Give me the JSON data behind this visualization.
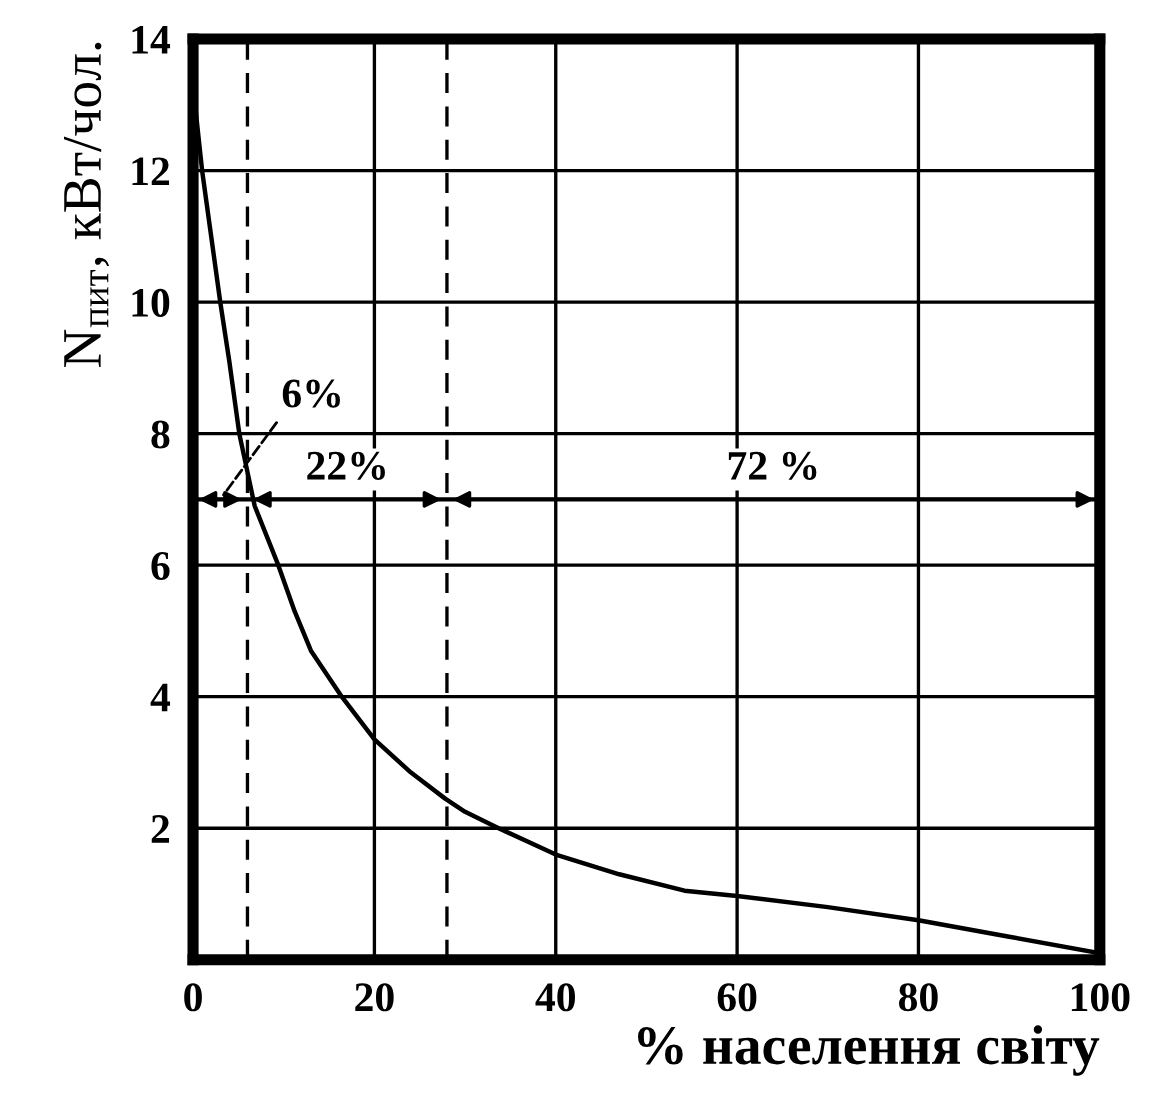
{
  "chart_data": {
    "type": "line",
    "xlabel": "% населення світу",
    "ylabel": "N$_{пит}$, кВт/чол.",
    "x": [
      0,
      0.3,
      1,
      2,
      3,
      4,
      5.1,
      6.8,
      9.4,
      11.2,
      13,
      16.4,
      20,
      24,
      27.8,
      30,
      33.7,
      40,
      47,
      54.2,
      60,
      70,
      80,
      90,
      100
    ],
    "series": [
      {
        "color": "#000000",
        "values": [
          13,
          12.9,
          12,
          11,
          10,
          9.1,
          8.0,
          6.9,
          6,
          5.3,
          4.7,
          4,
          3.35,
          2.85,
          2.45,
          2.25,
          2,
          1.6,
          1.3,
          1.05,
          0.97,
          0.8,
          0.6,
          0.35,
          0.1
        ]
      }
    ],
    "xlim": [
      0,
      100
    ],
    "xticks": [
      0,
      20,
      40,
      60,
      80,
      100
    ],
    "ylim": [
      0,
      14
    ],
    "yticks": [
      2,
      4,
      6,
      8,
      10,
      12,
      14
    ],
    "grid": true,
    "marker": "none",
    "line_style": "solid",
    "ref_lines": [
      {
        "axis": "y",
        "value": 7,
        "color": "#000000",
        "line_style": "solid"
      },
      {
        "axis": "x",
        "value": 6,
        "color": "#000000",
        "line_style": "dashed"
      },
      {
        "axis": "x",
        "value": 28,
        "color": "#000000",
        "line_style": "dashed"
      }
    ],
    "annotations": [
      {
        "text": "6%",
        "x": 3,
        "y": 7
      },
      {
        "text": "22%",
        "x": 17,
        "y": 7
      },
      {
        "text": "72 %",
        "x": 64,
        "y": 7
      }
    ]
  }
}
